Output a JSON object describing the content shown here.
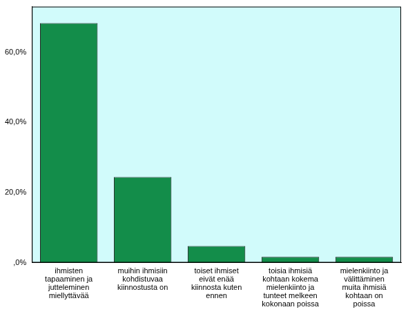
{
  "chart_data": {
    "type": "bar",
    "categories": [
      "ihmisten tapaaminen ja jutteleminen miellyttävää",
      "muihin ihmisiin kohdistuvaa kiinnostusta on",
      "toiset ihmiset eivät enää kiinnosta kuten ennen",
      "toisia ihmisiä kohtaan kokema mielenkiinto ja tunteet melkeen kokonaan poissa",
      "mielenkiinto ja välittäminen muita ihmisiä kohtaan on poissa"
    ],
    "values": [
      68.3,
      24.4,
      4.7,
      1.6,
      1.6
    ],
    "color": "#138d4a",
    "ylim": [
      0,
      73
    ],
    "yticks": [
      {
        "value": 0,
        "label": ",0%"
      },
      {
        "value": 20,
        "label": "20,0%"
      },
      {
        "value": 40,
        "label": "40,0%"
      },
      {
        "value": 60,
        "label": "60,0%"
      }
    ],
    "grid": false
  }
}
